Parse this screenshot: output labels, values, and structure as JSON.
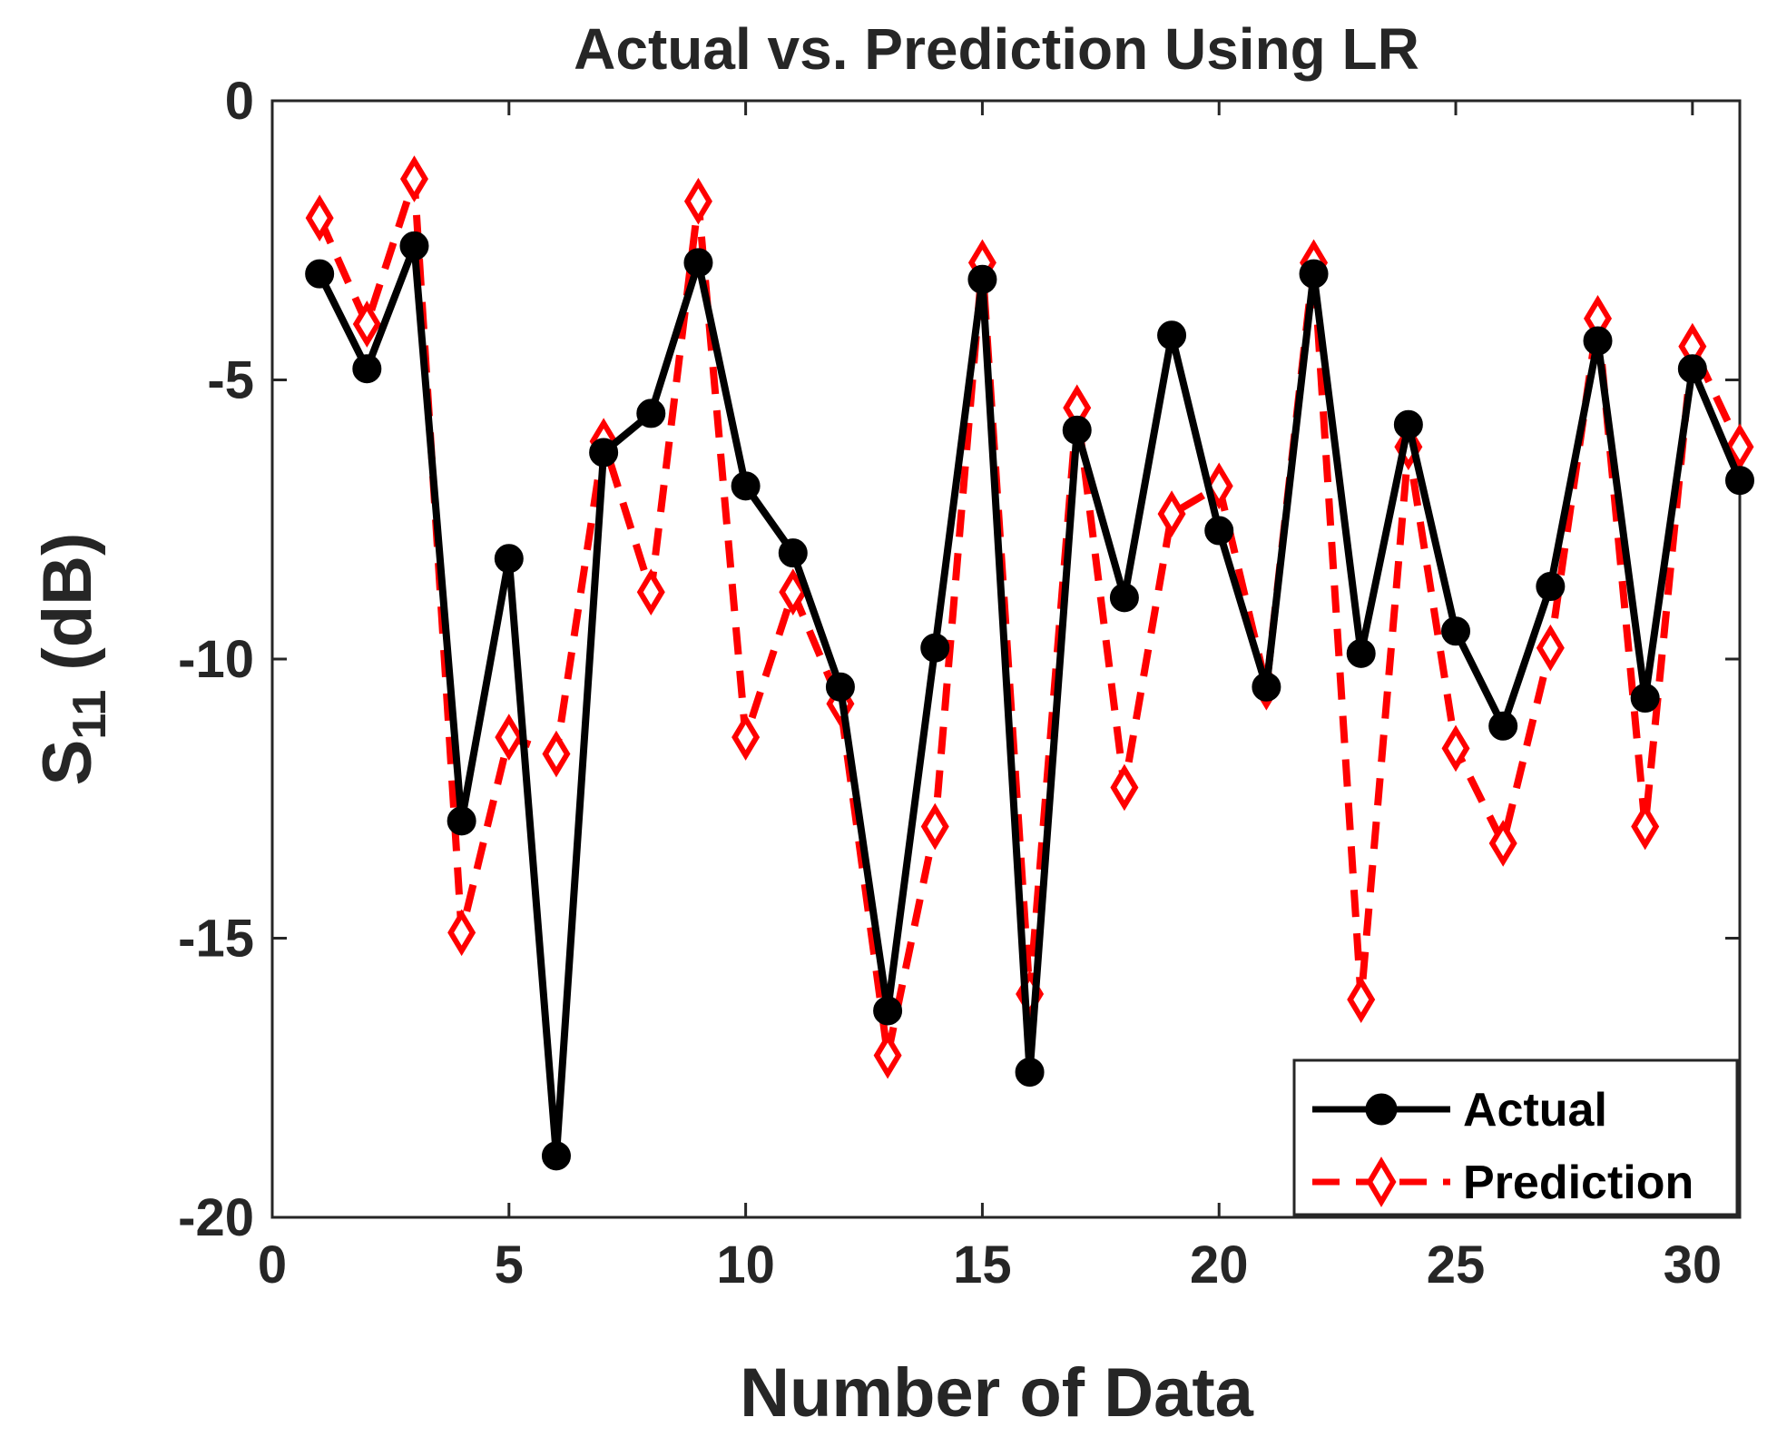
{
  "colors": {
    "actual": "#000000",
    "prediction": "#ff0000",
    "axis": "#262626",
    "background": "#ffffff"
  },
  "chart_data": {
    "type": "line",
    "title": "Actual vs. Prediction Using LR",
    "xlabel": "Number of Data",
    "ylabel_main": "S",
    "ylabel_sub": "11",
    "ylabel_unit": "(dB)",
    "xlim": [
      0,
      31
    ],
    "ylim": [
      -20,
      0
    ],
    "xticks": [
      0,
      5,
      10,
      15,
      20,
      25,
      30
    ],
    "yticks": [
      0,
      -5,
      -10,
      -15,
      -20
    ],
    "xtick_labels": [
      "0",
      "5",
      "10",
      "15",
      "20",
      "25",
      "30"
    ],
    "ytick_labels": [
      "0",
      "-5",
      "-10",
      "-15",
      "-20"
    ],
    "grid": false,
    "legend_position": "bottom-right",
    "x": [
      1,
      2,
      3,
      4,
      5,
      6,
      7,
      8,
      9,
      10,
      11,
      12,
      13,
      14,
      15,
      16,
      17,
      18,
      19,
      20,
      21,
      22,
      23,
      24,
      25,
      26,
      27,
      28,
      29,
      30,
      31
    ],
    "series": [
      {
        "name": "Actual",
        "style": "solid",
        "marker": "circle",
        "values": [
          -3.1,
          -4.8,
          -2.6,
          -12.9,
          -8.2,
          -18.9,
          -6.3,
          -5.6,
          -2.9,
          -6.9,
          -8.1,
          -10.5,
          -16.3,
          -9.8,
          -3.2,
          -17.4,
          -5.9,
          -8.9,
          -4.2,
          -7.7,
          -10.5,
          -3.1,
          -9.9,
          -5.8,
          -9.5,
          -11.2,
          -8.7,
          -4.3,
          -10.7,
          -4.8,
          -6.8
        ]
      },
      {
        "name": "Prediction",
        "style": "dashed",
        "marker": "diamond",
        "values": [
          -2.1,
          -4.0,
          -1.4,
          -14.9,
          -11.4,
          -11.7,
          -6.1,
          -8.8,
          -1.8,
          -11.4,
          -8.8,
          -10.8,
          -17.1,
          -13.0,
          -2.9,
          -16.0,
          -5.5,
          -12.3,
          -7.4,
          -6.9,
          -10.5,
          -2.9,
          -16.1,
          -6.2,
          -11.6,
          -13.3,
          -9.8,
          -3.9,
          -13.0,
          -4.4,
          -6.2
        ]
      }
    ]
  }
}
